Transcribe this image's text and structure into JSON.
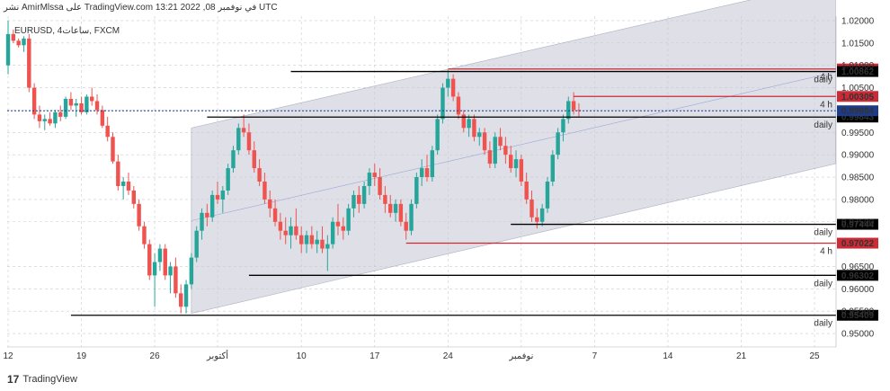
{
  "header": {
    "publish_line": "نشر AmirMlssa على TradingView.com في نوفمبر 08, 2022 13:21 UTC",
    "symbol_line": "EURUSD, 4ساعات, FXCM"
  },
  "footer": {
    "logo": "17",
    "brand": "TradingView"
  },
  "colors": {
    "up": "#26a69a",
    "down": "#ef5350",
    "support": "#000000",
    "resistance": "#cc2a36",
    "channel": "#c5c7d3",
    "current": "#1c3b8a"
  },
  "chart_data": {
    "type": "candlestick",
    "title": "",
    "xlabel": "",
    "ylabel": "",
    "ylim": [
      0.947,
      1.021
    ],
    "y_ticks": [
      "1.02000",
      "1.01500",
      "1.01000",
      "1.00500",
      "1.00000",
      "0.99500",
      "0.99000",
      "0.98500",
      "0.98000",
      "0.97500",
      "0.96500",
      "0.96000",
      "0.95500",
      "0.95000"
    ],
    "y_tick_values": [
      1.02,
      1.015,
      1.01,
      1.005,
      1.0,
      0.995,
      0.99,
      0.985,
      0.98,
      0.975,
      0.965,
      0.96,
      0.955,
      0.95
    ],
    "x_ticks": [
      "12",
      "19",
      "26",
      "أكتوبر",
      "10",
      "17",
      "24",
      "نوفمبر",
      "7",
      "14",
      "21",
      "25"
    ],
    "x_tick_positions": [
      0,
      7,
      14,
      20,
      28,
      35,
      42,
      49,
      56,
      63,
      70,
      77
    ],
    "grid": true,
    "current_price": 0.99984,
    "ohlc": [
      [
        0,
        1.01,
        1.02,
        1.008,
        1.017
      ],
      [
        0.5,
        1.017,
        1.018,
        1.015,
        1.0155
      ],
      [
        1,
        1.0155,
        1.016,
        1.014,
        1.0145
      ],
      [
        1.5,
        1.0145,
        1.0165,
        1.013,
        1.016
      ],
      [
        2,
        1.016,
        1.017,
        1.004,
        1.005
      ],
      [
        2.5,
        1.005,
        1.006,
        0.998,
        0.999
      ],
      [
        3,
        0.999,
        1.001,
        0.996,
        0.9975
      ],
      [
        3.5,
        0.9975,
        0.999,
        0.9955,
        0.998
      ],
      [
        4,
        0.998,
        0.9995,
        0.9965,
        0.997
      ],
      [
        4.5,
        0.997,
        1.0,
        0.996,
        0.9995
      ],
      [
        5,
        0.9995,
        1.001,
        0.9975,
        0.9985
      ],
      [
        5.5,
        0.9985,
        1.003,
        0.998,
        1.0025
      ],
      [
        6,
        1.0025,
        1.004,
        1.0,
        1.001
      ],
      [
        6.5,
        1.001,
        1.0025,
        0.9985,
        1.0015
      ],
      [
        7,
        1.0015,
        1.003,
        0.999,
        0.9995
      ],
      [
        7.5,
        0.9995,
        1.0035,
        0.999,
        1.003
      ],
      [
        8,
        1.003,
        1.005,
        1.001,
        1.002
      ],
      [
        8.5,
        1.002,
        1.0035,
        0.999,
        1.0
      ],
      [
        9,
        1.0,
        1.001,
        0.996,
        0.9965
      ],
      [
        9.5,
        0.9965,
        0.9985,
        0.993,
        0.994
      ],
      [
        10,
        0.994,
        0.995,
        0.988,
        0.9885
      ],
      [
        10.5,
        0.9885,
        0.99,
        0.982,
        0.983
      ],
      [
        11,
        0.983,
        0.985,
        0.98,
        0.984
      ],
      [
        11.5,
        0.984,
        0.986,
        0.981,
        0.982
      ],
      [
        12,
        0.982,
        0.983,
        0.978,
        0.979
      ],
      [
        12.5,
        0.979,
        0.98,
        0.973,
        0.974
      ],
      [
        13,
        0.974,
        0.975,
        0.969,
        0.97
      ],
      [
        13.5,
        0.97,
        0.971,
        0.962,
        0.963
      ],
      [
        14,
        0.963,
        0.968,
        0.956,
        0.966
      ],
      [
        14.5,
        0.966,
        0.97,
        0.964,
        0.969
      ],
      [
        15,
        0.969,
        0.97,
        0.962,
        0.963
      ],
      [
        15.5,
        0.963,
        0.966,
        0.959,
        0.965
      ],
      [
        16,
        0.965,
        0.967,
        0.958,
        0.959
      ],
      [
        16.5,
        0.959,
        0.961,
        0.9545,
        0.956
      ],
      [
        17,
        0.956,
        0.962,
        0.9545,
        0.961
      ],
      [
        17.5,
        0.961,
        0.968,
        0.96,
        0.967
      ],
      [
        18,
        0.967,
        0.974,
        0.966,
        0.973
      ],
      [
        18.5,
        0.973,
        0.978,
        0.971,
        0.977
      ],
      [
        19,
        0.977,
        0.979,
        0.974,
        0.976
      ],
      [
        19.5,
        0.976,
        0.982,
        0.975,
        0.981
      ],
      [
        20,
        0.981,
        0.984,
        0.979,
        0.98
      ],
      [
        20.5,
        0.98,
        0.983,
        0.977,
        0.982
      ],
      [
        21,
        0.982,
        0.988,
        0.981,
        0.987
      ],
      [
        21.5,
        0.987,
        0.992,
        0.986,
        0.991
      ],
      [
        22,
        0.991,
        0.997,
        0.99,
        0.996
      ],
      [
        22.5,
        0.996,
        0.999,
        0.994,
        0.995
      ],
      [
        23,
        0.995,
        0.997,
        0.99,
        0.991
      ],
      [
        23.5,
        0.991,
        0.993,
        0.986,
        0.987
      ],
      [
        24,
        0.987,
        0.989,
        0.983,
        0.984
      ],
      [
        24.5,
        0.984,
        0.986,
        0.979,
        0.98
      ],
      [
        25,
        0.98,
        0.982,
        0.976,
        0.978
      ],
      [
        25.5,
        0.978,
        0.98,
        0.974,
        0.975
      ],
      [
        26,
        0.975,
        0.977,
        0.971,
        0.973
      ],
      [
        26.5,
        0.973,
        0.976,
        0.97,
        0.972
      ],
      [
        27,
        0.972,
        0.976,
        0.969,
        0.974
      ],
      [
        27.5,
        0.974,
        0.978,
        0.971,
        0.972
      ],
      [
        28,
        0.972,
        0.974,
        0.968,
        0.97
      ],
      [
        28.5,
        0.97,
        0.973,
        0.968,
        0.972
      ],
      [
        29,
        0.972,
        0.974,
        0.969,
        0.97
      ],
      [
        29.5,
        0.97,
        0.973,
        0.968,
        0.971
      ],
      [
        30,
        0.971,
        0.974,
        0.968,
        0.969
      ],
      [
        30.5,
        0.969,
        0.972,
        0.964,
        0.97
      ],
      [
        31,
        0.97,
        0.976,
        0.969,
        0.975
      ],
      [
        31.5,
        0.975,
        0.979,
        0.972,
        0.974
      ],
      [
        32,
        0.974,
        0.976,
        0.971,
        0.973
      ],
      [
        32.5,
        0.973,
        0.979,
        0.972,
        0.978
      ],
      [
        33,
        0.978,
        0.982,
        0.976,
        0.981
      ],
      [
        33.5,
        0.981,
        0.983,
        0.977,
        0.979
      ],
      [
        34,
        0.979,
        0.984,
        0.978,
        0.983
      ],
      [
        34.5,
        0.983,
        0.987,
        0.981,
        0.986
      ],
      [
        35,
        0.986,
        0.988,
        0.983,
        0.985
      ],
      [
        35.5,
        0.985,
        0.987,
        0.98,
        0.981
      ],
      [
        36,
        0.981,
        0.983,
        0.977,
        0.979
      ],
      [
        36.5,
        0.979,
        0.981,
        0.976,
        0.977
      ],
      [
        37,
        0.977,
        0.98,
        0.975,
        0.979
      ],
      [
        37.5,
        0.979,
        0.98,
        0.974,
        0.975
      ],
      [
        38,
        0.975,
        0.977,
        0.971,
        0.973
      ],
      [
        38.5,
        0.973,
        0.98,
        0.972,
        0.979
      ],
      [
        39,
        0.979,
        0.986,
        0.978,
        0.985
      ],
      [
        39.5,
        0.985,
        0.989,
        0.983,
        0.987
      ],
      [
        40,
        0.987,
        0.99,
        0.984,
        0.985
      ],
      [
        40.5,
        0.985,
        0.992,
        0.984,
        0.991
      ],
      [
        41,
        0.991,
        0.999,
        0.99,
        0.998
      ],
      [
        41.5,
        0.998,
        1.006,
        0.997,
        1.005
      ],
      [
        42,
        1.005,
        1.009,
        1.003,
        1.007
      ],
      [
        42.5,
        1.007,
        1.008,
        1.002,
        1.003
      ],
      [
        43,
        1.003,
        1.004,
        0.998,
        0.999
      ],
      [
        43.5,
        0.999,
        1.0,
        0.995,
        0.996
      ],
      [
        44,
        0.996,
        0.999,
        0.994,
        0.998
      ],
      [
        44.5,
        0.998,
        0.999,
        0.993,
        0.994
      ],
      [
        45,
        0.994,
        0.996,
        0.992,
        0.995
      ],
      [
        45.5,
        0.995,
        0.996,
        0.99,
        0.991
      ],
      [
        46,
        0.991,
        0.993,
        0.987,
        0.988
      ],
      [
        46.5,
        0.988,
        0.995,
        0.987,
        0.994
      ],
      [
        47,
        0.994,
        0.996,
        0.991,
        0.992
      ],
      [
        47.5,
        0.992,
        0.994,
        0.988,
        0.99
      ],
      [
        48,
        0.99,
        0.992,
        0.986,
        0.987
      ],
      [
        48.5,
        0.987,
        0.991,
        0.985,
        0.989
      ],
      [
        49,
        0.989,
        0.99,
        0.983,
        0.984
      ],
      [
        49.5,
        0.984,
        0.986,
        0.979,
        0.98
      ],
      [
        50,
        0.98,
        0.982,
        0.975,
        0.976
      ],
      [
        50.5,
        0.976,
        0.978,
        0.9735,
        0.975
      ],
      [
        51,
        0.975,
        0.979,
        0.974,
        0.978
      ],
      [
        51.5,
        0.978,
        0.985,
        0.977,
        0.984
      ],
      [
        52,
        0.984,
        0.991,
        0.983,
        0.99
      ],
      [
        52.5,
        0.99,
        0.996,
        0.989,
        0.995
      ],
      [
        53,
        0.995,
        0.999,
        0.993,
        0.998
      ],
      [
        53.5,
        0.998,
        1.003,
        0.997,
        1.002
      ],
      [
        54,
        1.002,
        1.004,
        0.999,
        1.0
      ],
      [
        54.5,
        1.0,
        1.0015,
        0.9985,
        0.9998
      ]
    ],
    "channel": {
      "lower": [
        [
          17.5,
          0.9545
        ],
        [
          79,
          0.988
        ]
      ],
      "upper": [
        [
          17.5,
          0.996
        ],
        [
          79,
          1.029
        ]
      ]
    },
    "levels": [
      {
        "value": 1.00919,
        "label": "1.00919",
        "kind": "resistance",
        "start": 42,
        "note": "4 h"
      },
      {
        "value": 1.00305,
        "label": "1.00305",
        "kind": "resistance",
        "start": 54,
        "note": "4 h"
      },
      {
        "value": 1.00862,
        "label": "1.00862",
        "kind": "support",
        "start": 27,
        "note": "daily"
      },
      {
        "value": 0.99843,
        "label": "0.99843",
        "kind": "support",
        "start": 19,
        "note": "daily"
      },
      {
        "value": 0.97444,
        "label": "0.97444",
        "kind": "support",
        "start": 48,
        "note": "daily"
      },
      {
        "value": 0.97022,
        "label": "0.97022",
        "kind": "resistance",
        "start": 38,
        "note": "4 h"
      },
      {
        "value": 0.96302,
        "label": "0.96302",
        "kind": "support",
        "start": 23,
        "note": "daily"
      },
      {
        "value": 0.95409,
        "label": "0.95409",
        "kind": "support",
        "start": 6,
        "note": "daily"
      }
    ]
  }
}
